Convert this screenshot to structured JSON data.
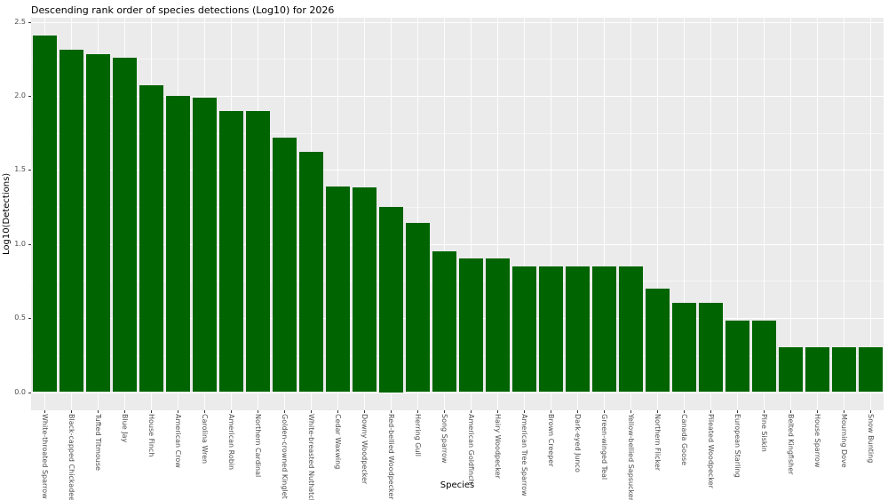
{
  "chart_data": {
    "type": "bar",
    "title": "Descending rank order of species detections (Log10) for 2026",
    "xlabel": "Species",
    "ylabel": "Log10(Detections)",
    "categories": [
      "White-throated Sparrow",
      "Black-capped Chickadee",
      "Tufted Titmouse",
      "Blue Jay",
      "House Finch",
      "American Crow",
      "Carolina Wren",
      "American Robin",
      "Northern Cardinal",
      "Golden-crowned Kinglet",
      "White-breasted Nuthatch",
      "Cedar Waxwing",
      "Downy Woodpecker",
      "Red-bellied Woodpecker",
      "Herring Gull",
      "Song Sparrow",
      "American Goldfinch",
      "Hairy Woodpecker",
      "American Tree Sparrow",
      "Brown Creeper",
      "Dark-eyed Junco",
      "Green-winged Teal",
      "Yellow-bellied Sapsucker",
      "Northern Flicker",
      "Canada Goose",
      "Pileated Woodpecker",
      "European Starling",
      "Pine Siskin",
      "Belted Kingfisher",
      "House Sparrow",
      "Mourning Dove",
      "Snow Bunting"
    ],
    "values": [
      2.41,
      2.31,
      2.28,
      2.26,
      2.07,
      2.0,
      1.99,
      1.9,
      1.9,
      1.72,
      1.62,
      1.39,
      1.38,
      1.25,
      1.14,
      0.95,
      0.9,
      0.9,
      0.85,
      0.85,
      0.85,
      0.85,
      0.85,
      0.7,
      0.6,
      0.6,
      0.48,
      0.48,
      0.3,
      0.3,
      0.3,
      0.3
    ],
    "y_ticks": [
      0.0,
      0.5,
      1.0,
      1.5,
      2.0,
      2.5
    ],
    "y_minor_ticks": [
      0.25,
      0.75,
      1.25,
      1.75,
      2.25
    ],
    "ylim": [
      0,
      2.5
    ],
    "grid": "on",
    "legend": "none",
    "bar_color": "#006400",
    "panel_background": "#EBEBEB",
    "gridline_color": "#FFFFFF",
    "tick_label_color": "#4D4D4D",
    "title_color": "#000000"
  }
}
